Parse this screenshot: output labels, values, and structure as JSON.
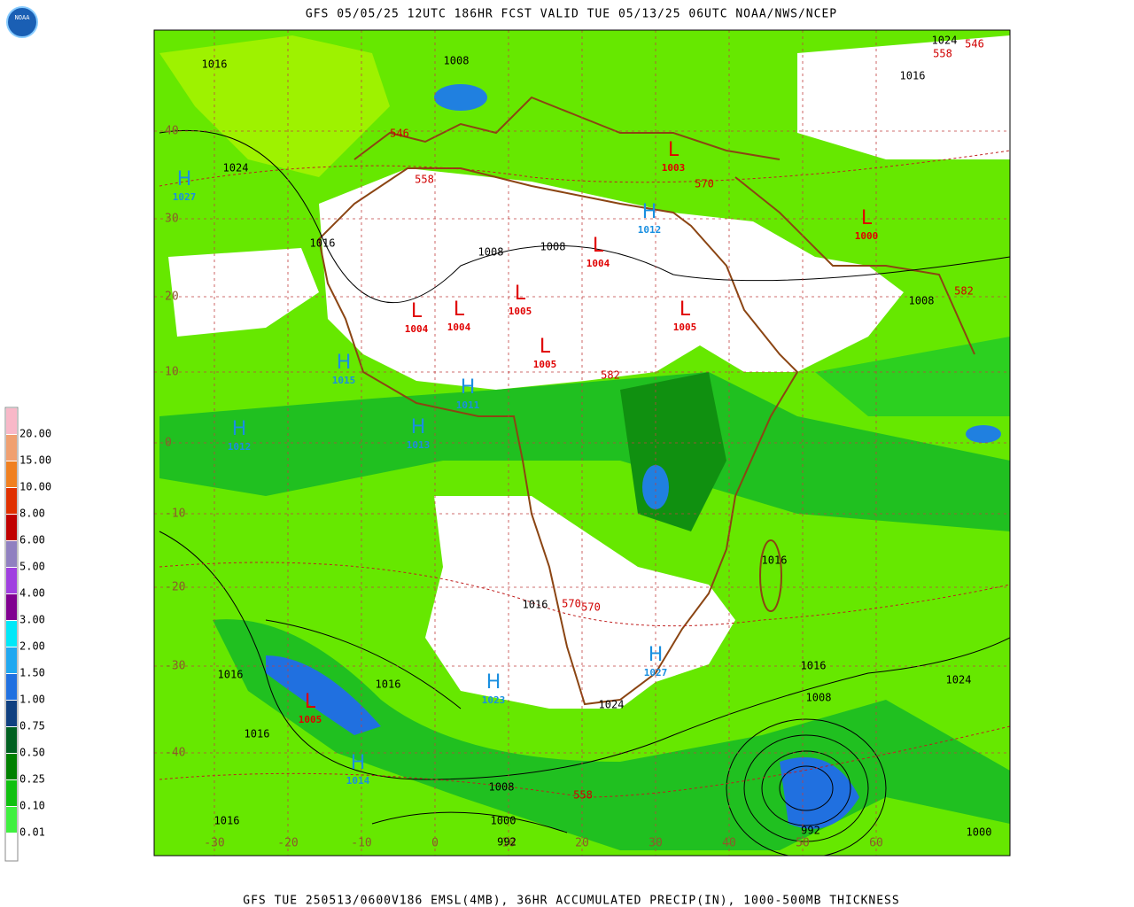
{
  "header": {
    "title": "GFS 05/05/25 12UTC 186HR FCST VALID TUE 05/13/25 06UTC NOAA/NWS/NCEP",
    "footer": "GFS TUE 250513/0600V186 EMSL(4MB), 36HR ACCUMULATED PRECIP(IN), 1000-500MB THICKNESS",
    "logo": "NOAA"
  },
  "legend": [
    {
      "label": "20.00",
      "color": "#f8b8c8"
    },
    {
      "label": "15.00",
      "color": "#f0a070"
    },
    {
      "label": "10.00",
      "color": "#f08020"
    },
    {
      "label": "8.00",
      "color": "#e03000"
    },
    {
      "label": "6.00",
      "color": "#c00000"
    },
    {
      "label": "5.00",
      "color": "#9080c0"
    },
    {
      "label": "4.00",
      "color": "#a040e0"
    },
    {
      "label": "3.00",
      "color": "#800090"
    },
    {
      "label": "2.00",
      "color": "#00e8f8"
    },
    {
      "label": "1.50",
      "color": "#20a8f0"
    },
    {
      "label": "1.00",
      "color": "#2070e0"
    },
    {
      "label": "0.75",
      "color": "#104080"
    },
    {
      "label": "0.50",
      "color": "#006020"
    },
    {
      "label": "0.25",
      "color": "#008000"
    },
    {
      "label": "0.10",
      "color": "#10c010"
    },
    {
      "label": "0.01",
      "color": "#40f040"
    }
  ],
  "lat_labels": [
    "40",
    "30",
    "20",
    "10",
    "0",
    "-10",
    "-20",
    "-30",
    "-40"
  ],
  "lon_labels": [
    "-30",
    "-20",
    "-10",
    "0",
    "10",
    "20",
    "30",
    "40",
    "50",
    "60"
  ],
  "highs_lows": [
    {
      "letter": "H",
      "pressure": "1027",
      "color": "#1a8fe0"
    },
    {
      "letter": "H",
      "pressure": "1015",
      "color": "#1a8fe0"
    },
    {
      "letter": "H",
      "pressure": "1011",
      "color": "#1a8fe0"
    },
    {
      "letter": "H",
      "pressure": "1013",
      "color": "#1a8fe0"
    },
    {
      "letter": "H",
      "pressure": "1012",
      "color": "#1a8fe0"
    },
    {
      "letter": "H",
      "pressure": "1023",
      "color": "#1a8fe0"
    },
    {
      "letter": "H",
      "pressure": "1027",
      "color": "#1a8fe0"
    },
    {
      "letter": "H",
      "pressure": "1014",
      "color": "#1a8fe0"
    },
    {
      "letter": "H",
      "pressure": "1012",
      "color": "#1a8fe0"
    },
    {
      "letter": "L",
      "pressure": "1004",
      "color": "#e00000"
    },
    {
      "letter": "L",
      "pressure": "1005",
      "color": "#e00000"
    },
    {
      "letter": "L",
      "pressure": "1004",
      "color": "#e00000"
    },
    {
      "letter": "L",
      "pressure": "1004",
      "color": "#e00000"
    },
    {
      "letter": "L",
      "pressure": "1005",
      "color": "#e00000"
    },
    {
      "letter": "L",
      "pressure": "1005",
      "color": "#e00000"
    },
    {
      "letter": "L",
      "pressure": "1000",
      "color": "#e00000"
    },
    {
      "letter": "L",
      "pressure": "1005",
      "color": "#e00000"
    },
    {
      "letter": "L",
      "pressure": "1003",
      "color": "#e00000"
    }
  ],
  "isobar_labels": [
    "1016",
    "1024",
    "1016",
    "1008",
    "1008",
    "1008",
    "1016",
    "1024",
    "1008",
    "1016",
    "1016",
    "1024",
    "1016",
    "1016",
    "1016",
    "1016",
    "1000",
    "992",
    "1008",
    "1016",
    "1008",
    "1024",
    "992",
    "1000"
  ],
  "thickness_labels": [
    "546",
    "558",
    "570",
    "570",
    "582",
    "558",
    "546",
    "558",
    "582",
    "570"
  ]
}
